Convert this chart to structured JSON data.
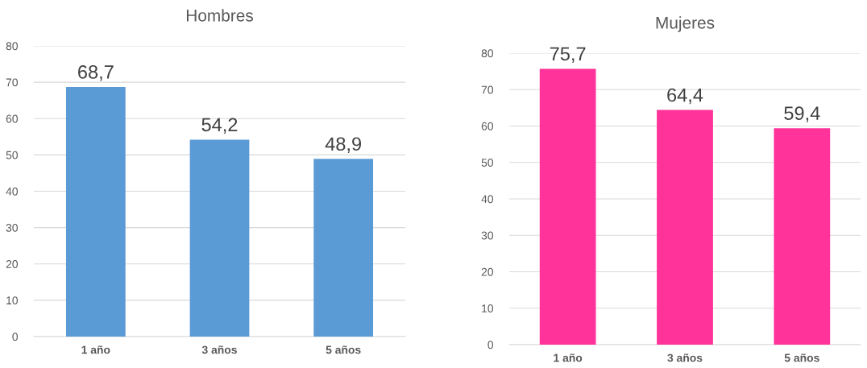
{
  "chart_data": [
    {
      "type": "bar",
      "title": "Hombres",
      "categories": [
        "1 año",
        "3 años",
        "5 años"
      ],
      "values": [
        68.7,
        54.2,
        48.9
      ],
      "value_labels": [
        "68,7",
        "54,2",
        "48,9"
      ],
      "color": "#5b9bd5",
      "ylim": [
        0,
        80
      ],
      "yticks": [
        0,
        10,
        20,
        30,
        40,
        50,
        60,
        70,
        80
      ],
      "grid": "y"
    },
    {
      "type": "bar",
      "title": "Mujeres",
      "categories": [
        "1 año",
        "3 años",
        "5 años"
      ],
      "values": [
        75.7,
        64.4,
        59.4
      ],
      "value_labels": [
        "75,7",
        "64,4",
        "59,4"
      ],
      "color": "#ff3399",
      "ylim": [
        0,
        80
      ],
      "yticks": [
        0,
        10,
        20,
        30,
        40,
        50,
        60,
        70,
        80
      ],
      "grid": "y"
    }
  ]
}
